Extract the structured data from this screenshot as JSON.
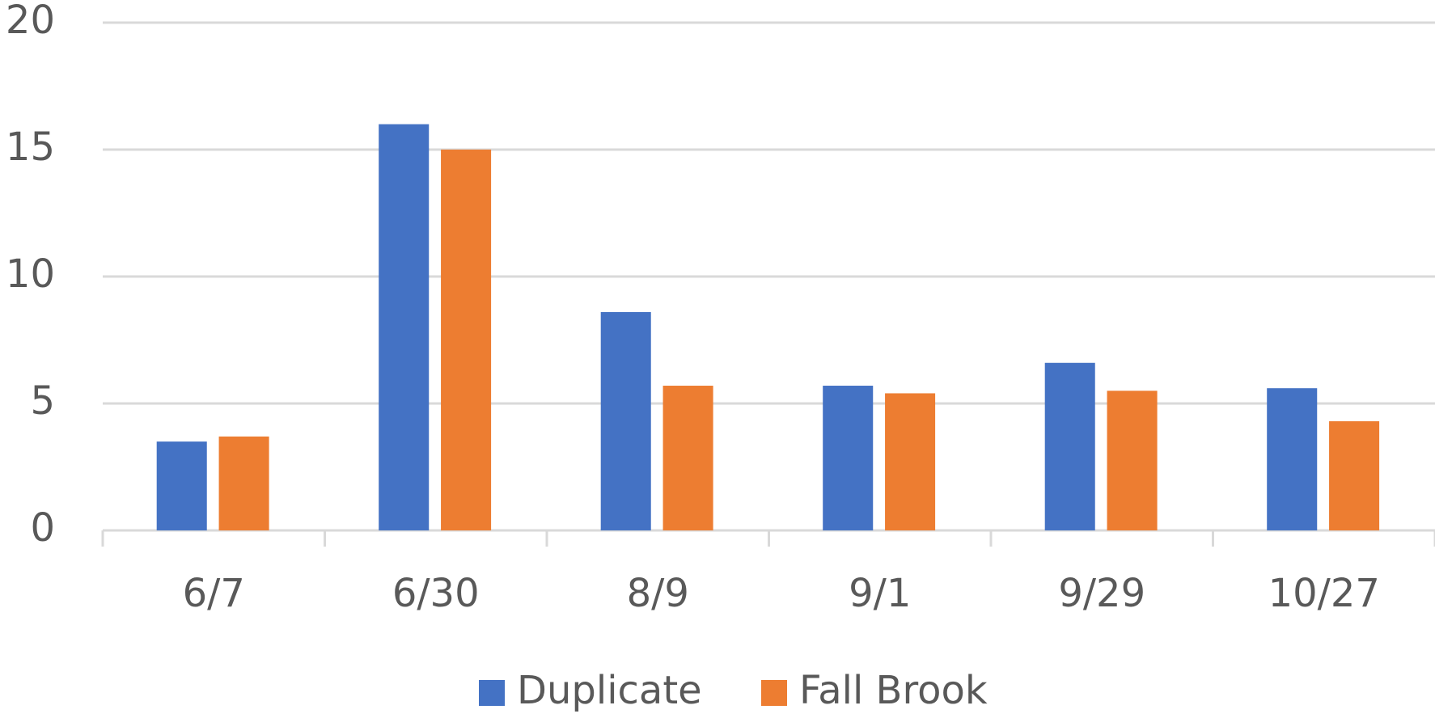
{
  "chart_data": {
    "type": "bar",
    "categories": [
      "6/7",
      "6/30",
      "8/9",
      "9/1",
      "9/29",
      "10/27"
    ],
    "series": [
      {
        "name": "Duplicate",
        "color": "#4472c4",
        "values": [
          3.5,
          16.0,
          8.6,
          5.7,
          6.6,
          5.6
        ]
      },
      {
        "name": "Fall Brook",
        "color": "#ed7d31",
        "values": [
          3.7,
          15.0,
          5.7,
          5.4,
          5.5,
          4.3
        ]
      }
    ],
    "ylim": [
      0,
      20
    ],
    "yticks": [
      0,
      5,
      10,
      15,
      20
    ],
    "grid": true,
    "legend": "bottom"
  }
}
